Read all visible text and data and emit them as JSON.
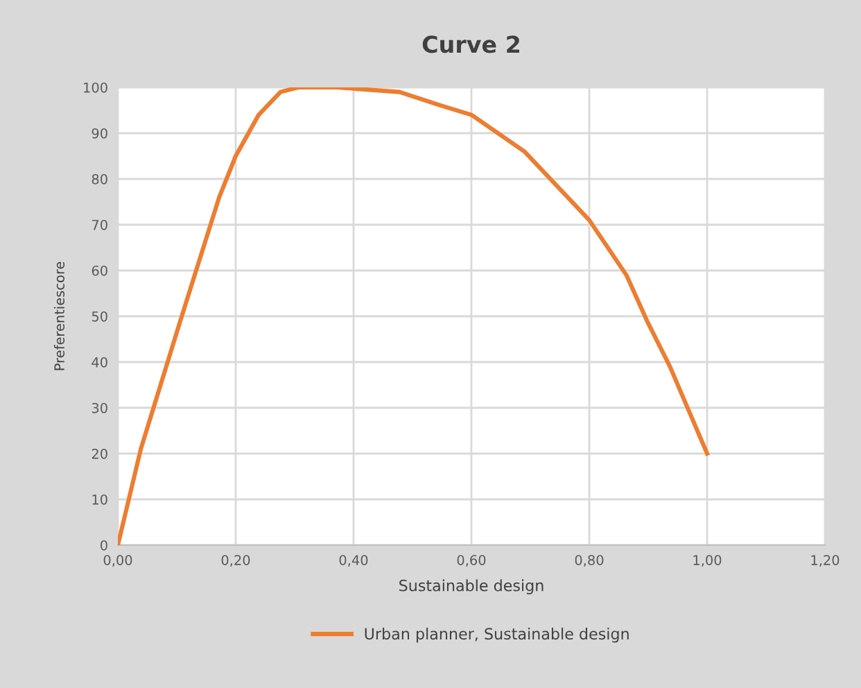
{
  "chart_data": {
    "type": "line",
    "title": "Curve 2",
    "xlabel": "Sustainable design",
    "ylabel": "Preferentiescore",
    "series": [
      {
        "name": "Urban planner, Sustainable design",
        "color": "#ed7d31",
        "x": [
          0,
          0.039,
          0.106,
          0.172,
          0.2,
          0.239,
          0.276,
          0.306,
          0.372,
          0.478,
          0.549,
          0.6,
          0.69,
          0.8,
          0.863,
          0.898,
          0.937,
          1.0
        ],
        "values": [
          0,
          21,
          49,
          76,
          85,
          94,
          99,
          100,
          100,
          99,
          96,
          94,
          86,
          71,
          59,
          49,
          39,
          20
        ]
      }
    ],
    "xlim": [
      0,
      1.2
    ],
    "xticks": [
      {
        "value": 0,
        "label": "0,00"
      },
      {
        "value": 0.2,
        "label": "0,20"
      },
      {
        "value": 0.4,
        "label": "0,40"
      },
      {
        "value": 0.6,
        "label": "0,60"
      },
      {
        "value": 0.8,
        "label": "0,80"
      },
      {
        "value": 1.0,
        "label": "1,00"
      },
      {
        "value": 1.2,
        "label": "1,20"
      }
    ],
    "ylim": [
      0,
      100
    ],
    "yticks": [
      0,
      10,
      20,
      30,
      40,
      50,
      60,
      70,
      80,
      90,
      100
    ],
    "grid": true,
    "legend": "bottom",
    "marker": "none",
    "line_style": "solid"
  }
}
